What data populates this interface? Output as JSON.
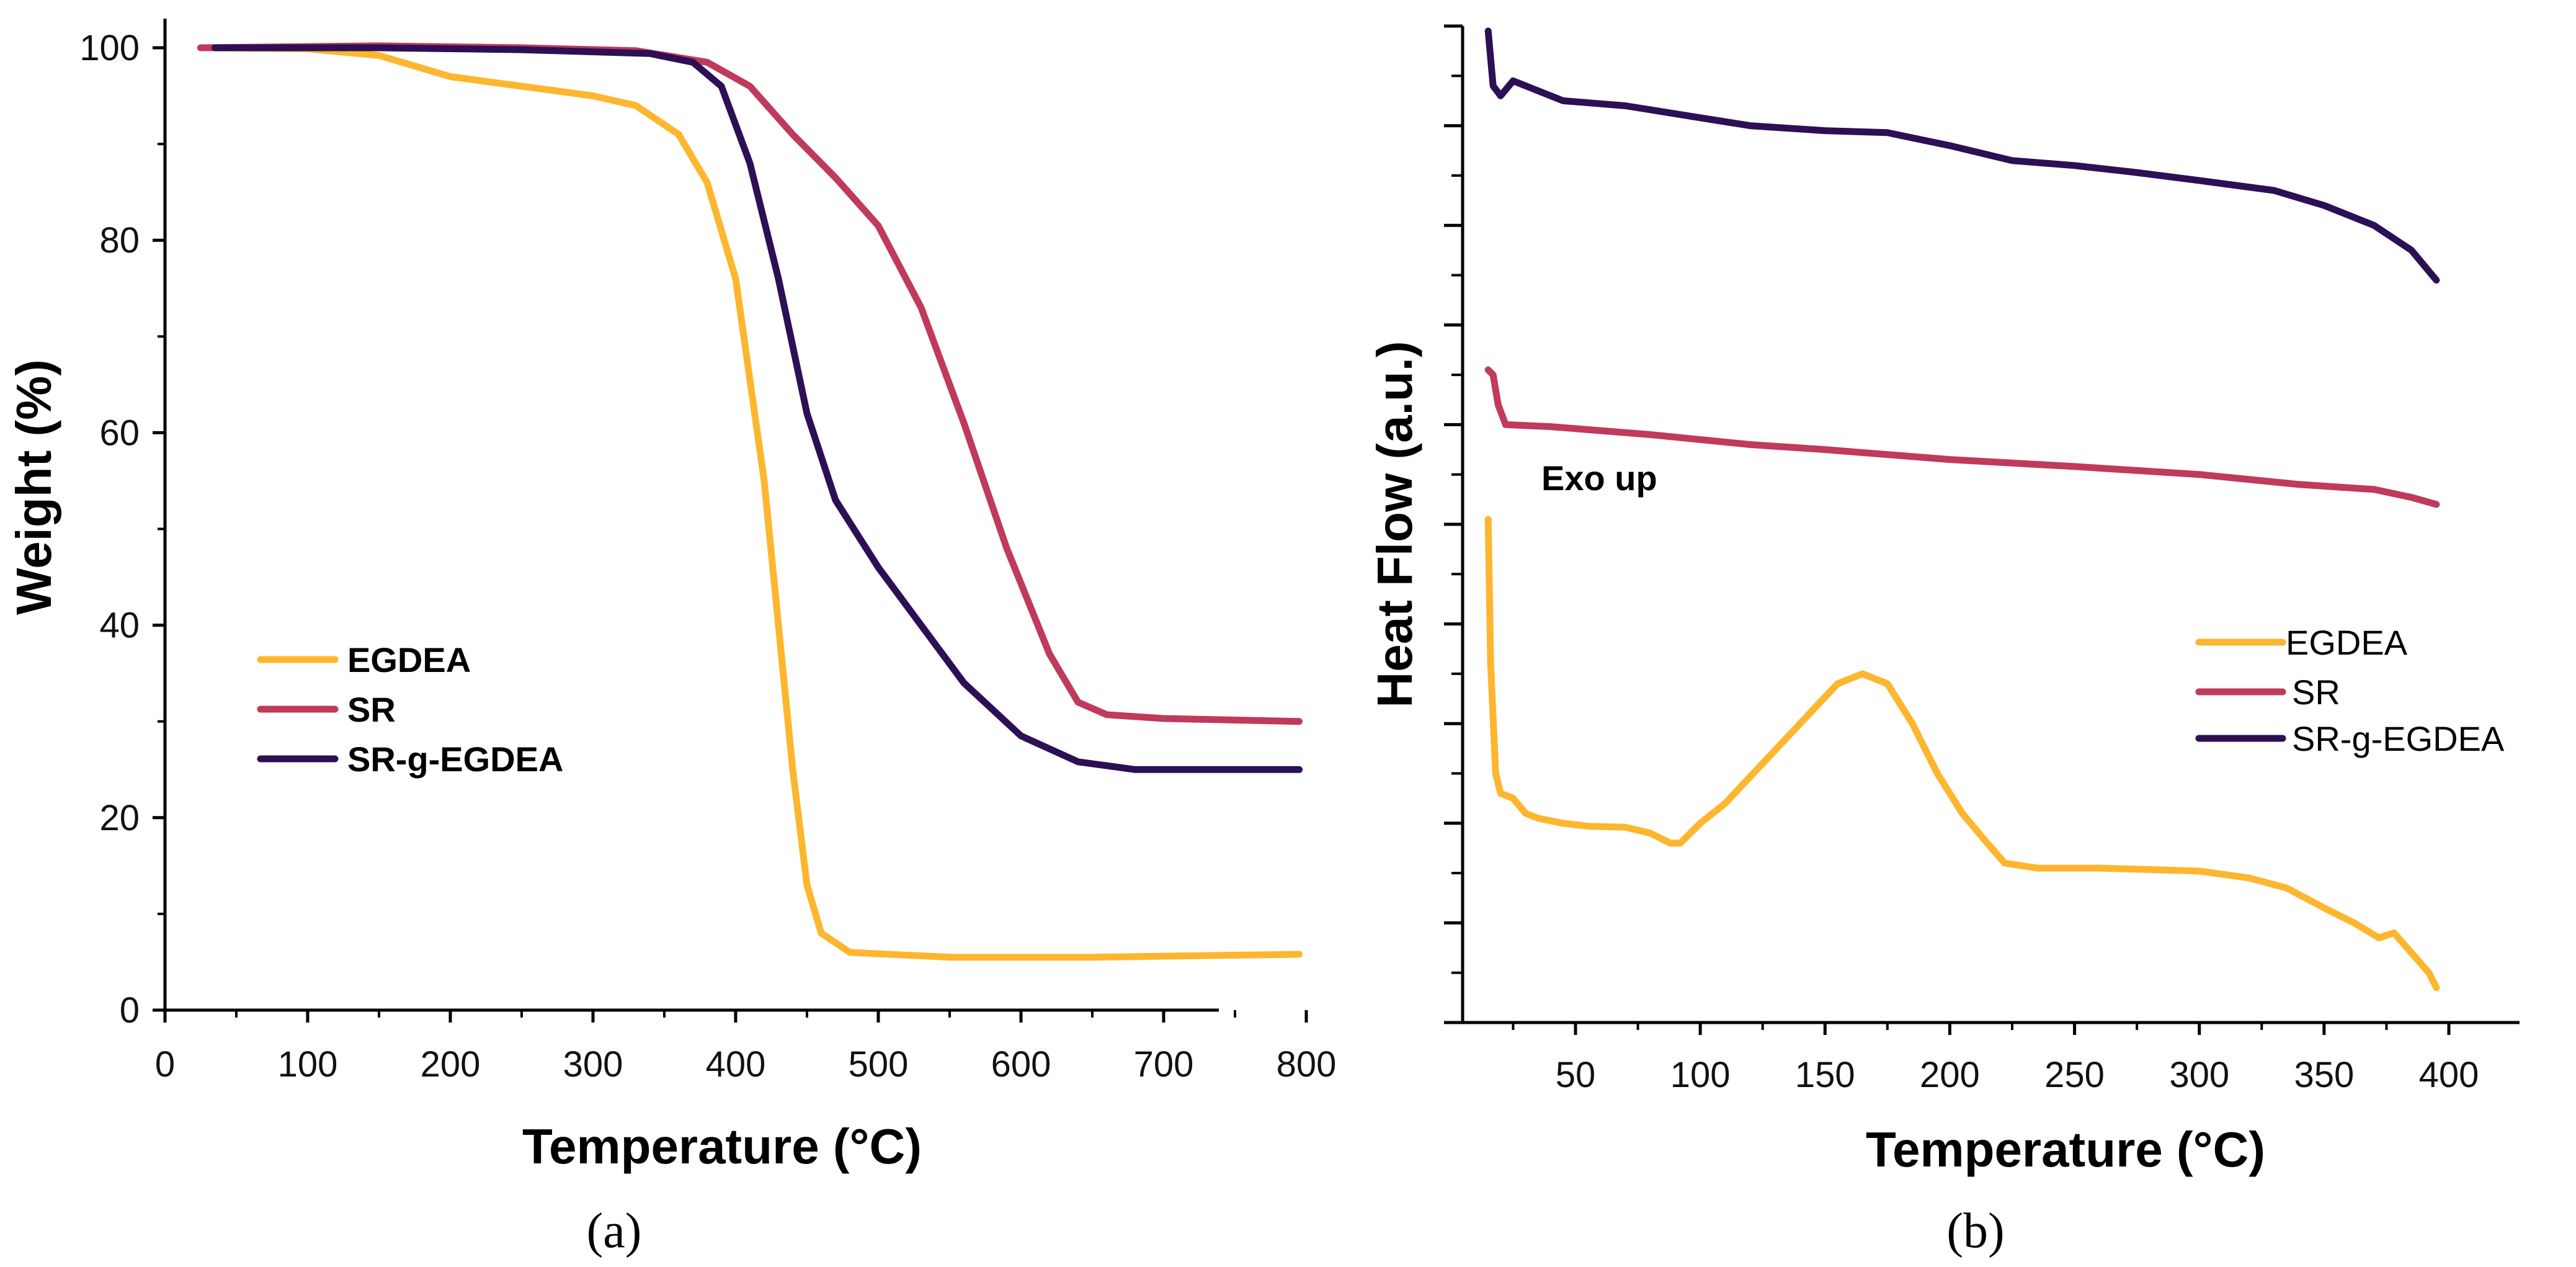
{
  "colors": {
    "EGDEA": "#FDB62E",
    "SR": "#C03A5B",
    "SR-g-EGDEA": "#2D0F55"
  },
  "chart_data": [
    {
      "panel": "(a)",
      "type": "line",
      "xlabel": "Temperature (°C)",
      "ylabel": "Weight (%)",
      "xlim": [
        0,
        800
      ],
      "ylim": [
        0,
        102
      ],
      "xticks": [
        0,
        100,
        200,
        300,
        400,
        500,
        600,
        700,
        800
      ],
      "yticks": [
        0,
        20,
        40,
        60,
        80,
        100
      ],
      "legend_position": "center-left",
      "series": [
        {
          "name": "EGDEA",
          "color": "#FDB62E",
          "points": [
            [
              25,
              100
            ],
            [
              100,
              99.9
            ],
            [
              150,
              99.2
            ],
            [
              200,
              97
            ],
            [
              250,
              96
            ],
            [
              300,
              95
            ],
            [
              330,
              94
            ],
            [
              360,
              91
            ],
            [
              380,
              86
            ],
            [
              400,
              76
            ],
            [
              420,
              55
            ],
            [
              430,
              40
            ],
            [
              440,
              25
            ],
            [
              450,
              13
            ],
            [
              460,
              8
            ],
            [
              480,
              6
            ],
            [
              550,
              5.5
            ],
            [
              650,
              5.5
            ],
            [
              795,
              5.8
            ]
          ]
        },
        {
          "name": "SR",
          "color": "#C03A5B",
          "points": [
            [
              25,
              100
            ],
            [
              150,
              100.2
            ],
            [
              250,
              100
            ],
            [
              330,
              99.7
            ],
            [
              380,
              98.5
            ],
            [
              410,
              96
            ],
            [
              440,
              91
            ],
            [
              470,
              86.5
            ],
            [
              500,
              81.5
            ],
            [
              530,
              73
            ],
            [
              560,
              61
            ],
            [
              590,
              48
            ],
            [
              620,
              37
            ],
            [
              640,
              32
            ],
            [
              660,
              30.7
            ],
            [
              700,
              30.3
            ],
            [
              795,
              30
            ]
          ]
        },
        {
          "name": "SR-g-EGDEA",
          "color": "#2D0F55",
          "points": [
            [
              35,
              100
            ],
            [
              150,
              100
            ],
            [
              250,
              99.8
            ],
            [
              340,
              99.4
            ],
            [
              370,
              98.5
            ],
            [
              390,
              96
            ],
            [
              410,
              88
            ],
            [
              430,
              76
            ],
            [
              450,
              62
            ],
            [
              470,
              53
            ],
            [
              500,
              46
            ],
            [
              530,
              40
            ],
            [
              560,
              34
            ],
            [
              600,
              28.5
            ],
            [
              640,
              25.8
            ],
            [
              680,
              25
            ],
            [
              795,
              25
            ]
          ]
        }
      ]
    },
    {
      "panel": "(b)",
      "type": "line",
      "xlabel": "Temperature (°C)",
      "ylabel": "Heat Flow (a.u.)",
      "xlim": [
        10,
        405
      ],
      "ylim": [
        0,
        1
      ],
      "xticks": [
        50,
        100,
        150,
        200,
        250,
        300,
        350,
        400
      ],
      "y_tick_labels": "none",
      "annotation": "Exo up",
      "legend_position": "right",
      "series": [
        {
          "name": "EGDEA",
          "color": "#FDB62E",
          "points": [
            [
              15,
              0.505
            ],
            [
              16,
              0.36
            ],
            [
              18,
              0.25
            ],
            [
              20,
              0.23
            ],
            [
              25,
              0.225
            ],
            [
              30,
              0.21
            ],
            [
              35,
              0.205
            ],
            [
              45,
              0.2
            ],
            [
              55,
              0.197
            ],
            [
              70,
              0.196
            ],
            [
              80,
              0.19
            ],
            [
              88,
              0.18
            ],
            [
              92,
              0.18
            ],
            [
              100,
              0.2
            ],
            [
              110,
              0.22
            ],
            [
              125,
              0.26
            ],
            [
              140,
              0.3
            ],
            [
              155,
              0.34
            ],
            [
              165,
              0.35
            ],
            [
              175,
              0.34
            ],
            [
              185,
              0.3
            ],
            [
              195,
              0.25
            ],
            [
              205,
              0.21
            ],
            [
              215,
              0.18
            ],
            [
              222,
              0.16
            ],
            [
              235,
              0.155
            ],
            [
              260,
              0.155
            ],
            [
              300,
              0.152
            ],
            [
              320,
              0.145
            ],
            [
              335,
              0.135
            ],
            [
              350,
              0.115
            ],
            [
              362,
              0.1
            ],
            [
              372,
              0.085
            ],
            [
              378,
              0.09
            ],
            [
              385,
              0.07
            ],
            [
              392,
              0.05
            ],
            [
              395,
              0.035
            ]
          ]
        },
        {
          "name": "SR",
          "color": "#C03A5B",
          "points": [
            [
              15,
              0.655
            ],
            [
              17,
              0.65
            ],
            [
              19,
              0.62
            ],
            [
              22,
              0.6
            ],
            [
              40,
              0.598
            ],
            [
              80,
              0.59
            ],
            [
              120,
              0.58
            ],
            [
              150,
              0.575
            ],
            [
              200,
              0.565
            ],
            [
              250,
              0.558
            ],
            [
              300,
              0.55
            ],
            [
              340,
              0.54
            ],
            [
              370,
              0.535
            ],
            [
              385,
              0.527
            ],
            [
              395,
              0.52
            ]
          ]
        },
        {
          "name": "SR-g-EGDEA",
          "color": "#2D0F55",
          "points": [
            [
              15,
              0.995
            ],
            [
              17,
              0.94
            ],
            [
              20,
              0.93
            ],
            [
              25,
              0.945
            ],
            [
              35,
              0.935
            ],
            [
              45,
              0.925
            ],
            [
              70,
              0.92
            ],
            [
              100,
              0.908
            ],
            [
              120,
              0.9
            ],
            [
              150,
              0.895
            ],
            [
              175,
              0.893
            ],
            [
              200,
              0.88
            ],
            [
              225,
              0.865
            ],
            [
              250,
              0.86
            ],
            [
              275,
              0.853
            ],
            [
              300,
              0.845
            ],
            [
              330,
              0.835
            ],
            [
              350,
              0.82
            ],
            [
              370,
              0.8
            ],
            [
              385,
              0.775
            ],
            [
              395,
              0.745
            ]
          ]
        }
      ]
    }
  ]
}
